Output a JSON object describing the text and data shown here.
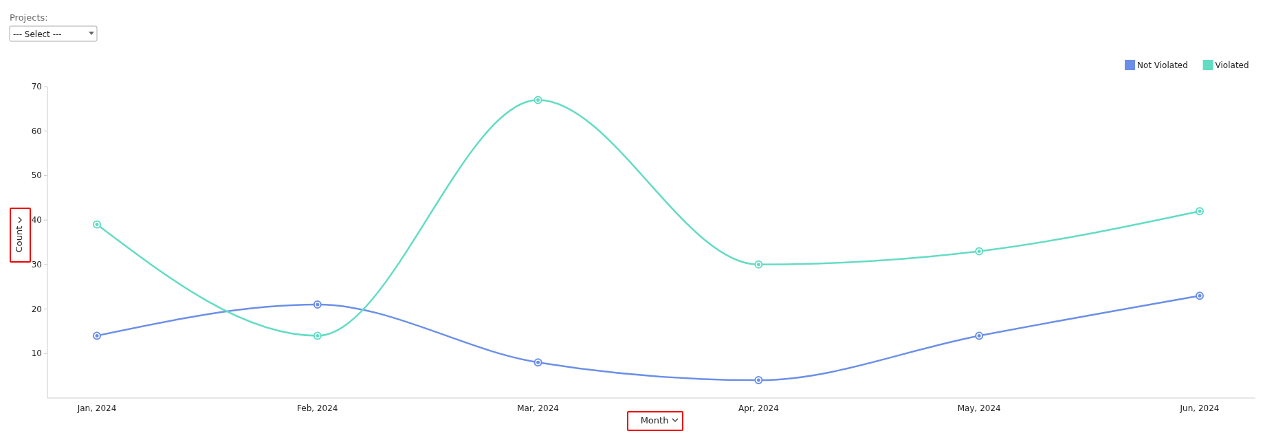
{
  "chart_data": {
    "type": "line",
    "xlabel": "Month",
    "ylabel": "Count",
    "categories": [
      "Jan, 2024",
      "Feb, 2024",
      "Mar, 2024",
      "Apr, 2024",
      "May, 2024",
      "Jun, 2024"
    ],
    "series": [
      {
        "name": "Not Violated",
        "color": "#6b8fe8",
        "values": [
          14,
          21,
          8,
          4,
          14,
          23
        ]
      },
      {
        "name": "Violated",
        "color": "#63dcc4",
        "values": [
          39,
          14,
          67,
          30,
          33,
          42
        ]
      }
    ],
    "ylim": [
      0,
      70
    ],
    "yticks": [
      10,
      20,
      30,
      40,
      50,
      60,
      70
    ],
    "grid": false,
    "legend": "top right",
    "marker": "circle",
    "line_style": "solid",
    "annotations": [
      "Projects:",
      "--- Select ---"
    ]
  }
}
